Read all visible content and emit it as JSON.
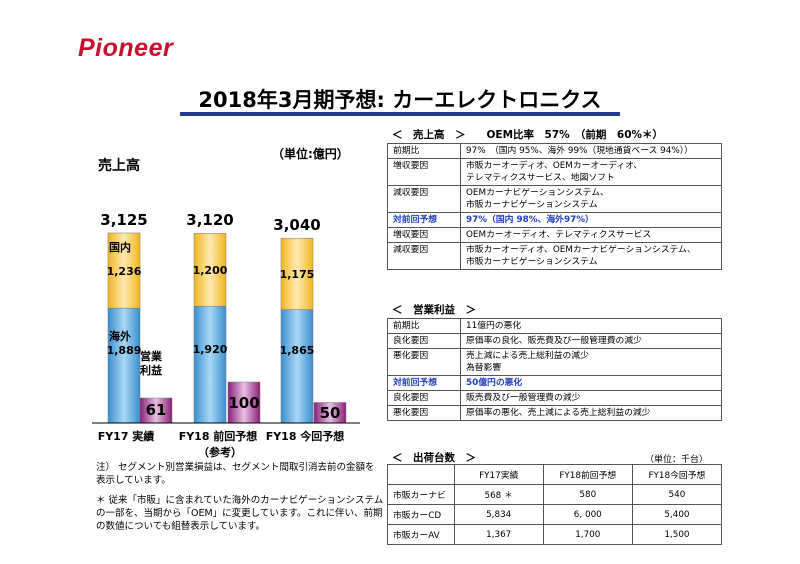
{
  "brand": "Pioneer",
  "title": "2018年3月期予想: カーエレクトロニクス",
  "chart_data": {
    "type": "bar",
    "stacked": true,
    "title": "売上高",
    "unit": "（単位:億円）",
    "categories": [
      "FY17 実績",
      "FY18 前回予想",
      "FY18 今回予想"
    ],
    "category_sub": [
      "",
      "（参考）",
      ""
    ],
    "series": [
      {
        "name": "海外",
        "values": [
          1889,
          1920,
          1865
        ],
        "color": "#4aa3d8"
      },
      {
        "name": "国内",
        "values": [
          1236,
          1200,
          1175
        ],
        "color": "#f5c33b"
      }
    ],
    "totals": [
      "3,125",
      "3,120",
      "3,040"
    ],
    "value_labels_overseas": [
      "1,889",
      "1,920",
      "1,865"
    ],
    "value_labels_domestic": [
      "1,236",
      "1,200",
      "1,175"
    ],
    "profit": {
      "name": "営業\n利益",
      "values": [
        61,
        100,
        50
      ],
      "labels": [
        "61",
        "100",
        "50"
      ],
      "color": "#9b2f8a"
    },
    "ylim": [
      0,
      3200
    ]
  },
  "notes": [
    "注） セグメント別営業損益は、セグメント間取引消去前の金額を表示しています。",
    "＊ 従来「市販」に含まれていた海外のカーナビゲーションシステムの一部を、当期から「OEM」に変更しています。これに伴い、前期の数値についても組替表示しています。"
  ],
  "sales": {
    "header": "＜　売上高　＞　　OEM比率　57%　（前期　60%＊）",
    "rows": [
      {
        "k": "前期比",
        "v": "97%　（国内 95%、海外 99%（現地通貨ベース 94%））"
      },
      {
        "k": "増収要因",
        "v": "市販カーオーディオ、OEMカーオーディオ、\nテレマティクスサービス、地図ソフト"
      },
      {
        "k": "減収要因",
        "v": "OEMカーナビゲーションシステム、\n市販カーナビゲーションシステム"
      },
      {
        "k": "対前回予想",
        "v": "97%（国内 98%、海外97%）",
        "blue": true
      },
      {
        "k": "増収要因",
        "v": "OEMカーオーディオ、テレマティクスサービス"
      },
      {
        "k": "減収要因",
        "v": "市販カーオーディオ、OEMカーナビゲーションシステム、\n市販カーナビゲーションシステム"
      }
    ]
  },
  "profit_tbl": {
    "header": "＜　営業利益　＞",
    "rows": [
      {
        "k": "前期比",
        "v": "11億円の悪化"
      },
      {
        "k": "良化要因",
        "v": "原価率の良化、販売費及び一般管理費の減少"
      },
      {
        "k": "悪化要因",
        "v": "売上減による売上総利益の減少\n為替影響"
      },
      {
        "k": "対前回予想",
        "v": "50億円の悪化",
        "blue": true
      },
      {
        "k": "良化要因",
        "v": "販売費及び一般管理費の減少"
      },
      {
        "k": "悪化要因",
        "v": "原価率の悪化、売上減による売上総利益の減少"
      }
    ]
  },
  "shipments": {
    "header": "＜　出荷台数　＞",
    "unit": "（単位：千台）",
    "columns": [
      "",
      "FY17実績",
      "FY18前回予想",
      "FY18今回予想"
    ],
    "rows": [
      [
        "市販カーナビ",
        "568 ＊",
        "580",
        "540"
      ],
      [
        "市販カーCD",
        "5,834",
        "6, 000",
        "5,400"
      ],
      [
        "市販カーAV",
        "1,367",
        "1,700",
        "1,500"
      ]
    ]
  }
}
